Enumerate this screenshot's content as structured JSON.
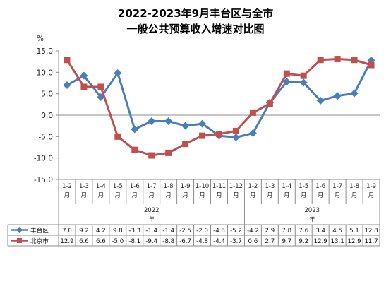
{
  "chart_data": {
    "type": "line",
    "title_line1": "2022-2023年9月丰台区与全市",
    "title_line2": "一般公共预算收入增速对比图",
    "ylabel": "%",
    "ylim": [
      -15,
      15
    ],
    "yticks": [
      "15.0",
      "10.0",
      "5.0",
      "0.0",
      "-5.0",
      "-10.0",
      "-15.0"
    ],
    "grid": false,
    "categories": [
      "1-2",
      "1-3",
      "1-4",
      "1-5",
      "1-6",
      "1-7",
      "1-8",
      "1-9",
      "1-10",
      "1-11",
      "1-12",
      "1-2",
      "1-3",
      "1-4",
      "1-5",
      "1-6",
      "1-7",
      "1-8",
      "1-9"
    ],
    "month_label": "月",
    "year_unit": "年",
    "groups": [
      {
        "label": "2022",
        "start": 0,
        "count": 11
      },
      {
        "label": "2023",
        "start": 11,
        "count": 8
      }
    ],
    "series": [
      {
        "name": "丰台区",
        "color": "#4a7ebb",
        "marker": "diamond",
        "values": [
          7.0,
          9.2,
          4.2,
          9.8,
          -3.3,
          -1.4,
          -1.4,
          -2.5,
          -2.0,
          -4.8,
          -5.2,
          -4.2,
          2.9,
          7.8,
          7.6,
          3.4,
          4.5,
          5.1,
          12.8
        ],
        "labels": [
          "7.0",
          "9.2",
          "4.2",
          "9.8",
          "-3.3",
          "-1.4",
          "-1.4",
          "-2.5",
          "-2.0",
          "-4.8",
          "-5.2",
          "-4.2",
          "2.9",
          "7.8",
          "7.6",
          "3.4",
          "4.5",
          "5.1",
          "12.8"
        ]
      },
      {
        "name": "北京市",
        "color": "#c0504d",
        "marker": "square",
        "values": [
          12.9,
          6.6,
          6.6,
          -5.0,
          -8.1,
          -9.4,
          -8.8,
          -6.7,
          -4.8,
          -4.4,
          -3.7,
          0.6,
          2.7,
          9.7,
          9.2,
          12.9,
          13.1,
          12.9,
          11.7
        ],
        "labels": [
          "12.9",
          "6.6",
          "6.6",
          "-5.0",
          "-8.1",
          "-9.4",
          "-8.8",
          "-6.7",
          "-4.8",
          "-4.4",
          "-3.7",
          "0.6",
          "2.7",
          "9.7",
          "9.2",
          "12.9",
          "13.1",
          "12.9",
          "11.7"
        ]
      }
    ]
  }
}
